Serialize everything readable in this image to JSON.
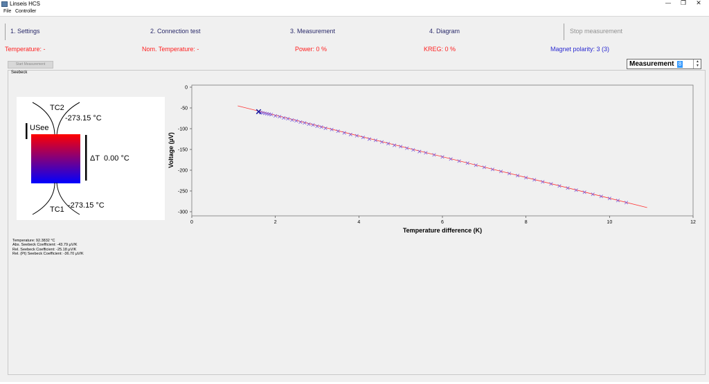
{
  "window": {
    "title": "Linseis HCS",
    "minimize": "—",
    "restore": "❐",
    "close": "✕"
  },
  "menu": {
    "items": [
      "File",
      "Controller"
    ]
  },
  "tabs": [
    {
      "label": "1.  Settings"
    },
    {
      "label": "2. Connection test"
    },
    {
      "label": "3. Measurement"
    },
    {
      "label": "4. Diagram"
    },
    {
      "label": "Stop measurement"
    }
  ],
  "status": {
    "temperature": "Temperature: -",
    "nom_temperature": "Nom. Temperature: -",
    "power": "Power: 0 %",
    "kreg": "KREG: 0 %",
    "magnet": "Magnet polarity: 3 (3)"
  },
  "controls": {
    "start_label": "Start Measurement",
    "measurement_label": "Measurement",
    "measurement_value": "8"
  },
  "group": {
    "title": "Seebeck"
  },
  "schematic": {
    "tc2_label": "TC2",
    "tc2_value": "-273.15 °C",
    "tc1_label": "TC1",
    "tc1_value": "-273.15 °C",
    "usee_label": "USee",
    "delta_label": "ΔT",
    "delta_value": "0.00 °C",
    "colors": {
      "hot": "#ff0000",
      "cold": "#0000ff"
    }
  },
  "results": [
    "Temperature: 92.3832 °C",
    "Abs. Seebeck Coefficient: -43.79 µV/K",
    "Rel. Seebeck Coefficient: -25.18 µV/K",
    "Rel. (Pt) Seebeck Coefficient: -36.70 µV/K"
  ],
  "colors": {
    "status_red": "#ff2020",
    "status_blue": "#2a2ad0",
    "fit_line": "#ff3030",
    "markers": "#7a58d8"
  },
  "chart_data": {
    "type": "scatter",
    "xlabel": "Temperature difference (K)",
    "ylabel": "Voltage (µV)",
    "xlim": [
      0,
      12
    ],
    "ylim": [
      -300,
      0
    ],
    "xticks": [
      0,
      2,
      4,
      6,
      8,
      10,
      12
    ],
    "yticks": [
      0,
      -50,
      -100,
      -150,
      -200,
      -250,
      -300
    ],
    "fit_line": {
      "x": [
        1.1,
        10.9
      ],
      "y": [
        -45,
        -290
      ]
    },
    "points": {
      "x": [
        1.6,
        1.65,
        1.7,
        1.75,
        1.8,
        1.85,
        1.9,
        2.0,
        2.1,
        2.2,
        2.3,
        2.4,
        2.5,
        2.6,
        2.7,
        2.8,
        2.9,
        3.0,
        3.1,
        3.2,
        3.35,
        3.5,
        3.65,
        3.8,
        3.95,
        4.1,
        4.25,
        4.4,
        4.55,
        4.7,
        4.85,
        5.0,
        5.15,
        5.3,
        5.45,
        5.6,
        5.8,
        6.0,
        6.2,
        6.4,
        6.6,
        6.8,
        7.0,
        7.2,
        7.4,
        7.6,
        7.8,
        8.0,
        8.2,
        8.4,
        8.6,
        8.8,
        9.0,
        9.2,
        9.4,
        9.6,
        9.8,
        10.0,
        10.2,
        10.4
      ],
      "y": [
        -59,
        -61,
        -62,
        -63,
        -64,
        -65,
        -66,
        -69,
        -71,
        -74,
        -76,
        -79,
        -81,
        -84,
        -86,
        -89,
        -91,
        -94,
        -96,
        -99,
        -102,
        -106,
        -110,
        -114,
        -117,
        -121,
        -125,
        -128,
        -132,
        -136,
        -140,
        -143,
        -147,
        -151,
        -155,
        -158,
        -163,
        -168,
        -173,
        -178,
        -183,
        -188,
        -193,
        -198,
        -203,
        -208,
        -213,
        -218,
        -223,
        -228,
        -233,
        -238,
        -243,
        -248,
        -253,
        -258,
        -263,
        -268,
        -273,
        -278
      ]
    },
    "highlight": {
      "x": 1.6,
      "y": -59
    },
    "grid": false,
    "legend": "none"
  }
}
